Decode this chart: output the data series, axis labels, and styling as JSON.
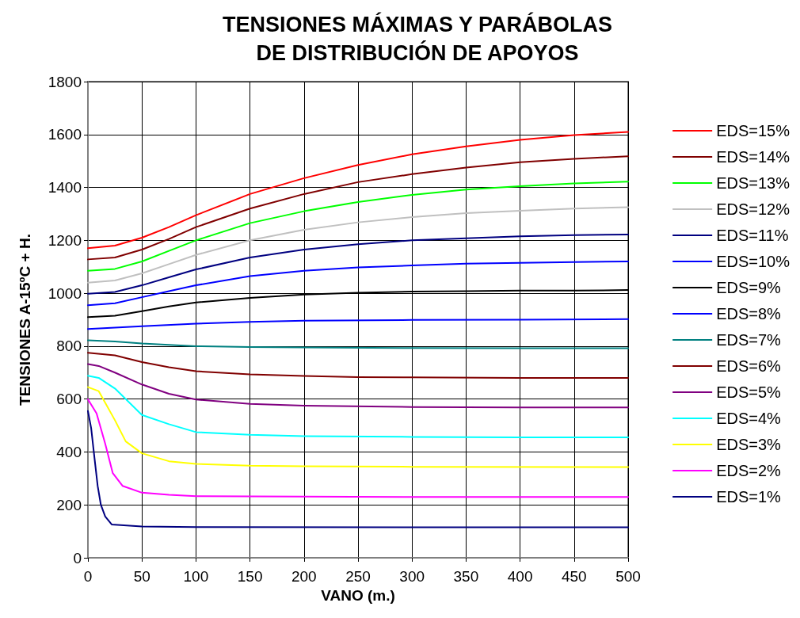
{
  "chart_data": {
    "type": "line",
    "title": "TENSIONES MÁXIMAS Y PARÁBOLAS\nDE DISTRIBUCIÓN DE APOYOS",
    "xlabel": "VANO (m.)",
    "ylabel": "TENSIONES A-15ºC + H.",
    "xlim": [
      0,
      500
    ],
    "xticks": [
      0,
      50,
      100,
      150,
      200,
      250,
      300,
      350,
      400,
      450,
      500
    ],
    "ylim": [
      0,
      1800
    ],
    "yticks": [
      0,
      200,
      400,
      600,
      800,
      1000,
      1200,
      1400,
      1600,
      1800
    ],
    "grid": true,
    "legend": "right",
    "marker": "none",
    "line_style": "solid",
    "series": [
      {
        "name": "EDS=15%",
        "color": "#ff0000",
        "x": [
          0,
          25,
          50,
          75,
          100,
          150,
          200,
          250,
          300,
          350,
          400,
          450,
          500
        ],
        "values": [
          1170,
          1180,
          1210,
          1250,
          1295,
          1375,
          1435,
          1485,
          1525,
          1555,
          1580,
          1598,
          1610
        ]
      },
      {
        "name": "EDS=14%",
        "color": "#800000",
        "x": [
          0,
          25,
          50,
          75,
          100,
          150,
          200,
          250,
          300,
          350,
          400,
          450,
          500
        ],
        "values": [
          1128,
          1135,
          1165,
          1205,
          1250,
          1320,
          1375,
          1420,
          1450,
          1475,
          1495,
          1508,
          1518
        ]
      },
      {
        "name": "EDS=13%",
        "color": "#00ff00",
        "x": [
          0,
          25,
          50,
          75,
          100,
          150,
          200,
          250,
          300,
          350,
          400,
          450,
          500
        ],
        "values": [
          1085,
          1092,
          1120,
          1160,
          1200,
          1265,
          1310,
          1345,
          1372,
          1392,
          1405,
          1415,
          1422
        ]
      },
      {
        "name": "EDS=12%",
        "color": "#c0c0c0",
        "x": [
          0,
          25,
          50,
          75,
          100,
          150,
          200,
          250,
          300,
          350,
          400,
          450,
          500
        ],
        "values": [
          1040,
          1048,
          1075,
          1110,
          1145,
          1200,
          1240,
          1268,
          1288,
          1303,
          1312,
          1320,
          1325
        ]
      },
      {
        "name": "EDS=11%",
        "color": "#000080",
        "x": [
          0,
          25,
          50,
          75,
          100,
          150,
          200,
          250,
          300,
          350,
          400,
          450,
          500
        ],
        "values": [
          998,
          1005,
          1030,
          1060,
          1090,
          1135,
          1165,
          1185,
          1200,
          1208,
          1215,
          1220,
          1222
        ]
      },
      {
        "name": "EDS=10%",
        "color": "#0000ff",
        "x": [
          0,
          25,
          50,
          75,
          100,
          150,
          200,
          250,
          300,
          350,
          400,
          450,
          500
        ],
        "values": [
          955,
          962,
          985,
          1008,
          1030,
          1065,
          1085,
          1098,
          1105,
          1112,
          1115,
          1118,
          1120
        ]
      },
      {
        "name": "EDS=9%",
        "color": "#000000",
        "x": [
          0,
          25,
          50,
          75,
          100,
          150,
          200,
          250,
          300,
          350,
          400,
          450,
          500
        ],
        "values": [
          910,
          915,
          932,
          950,
          965,
          982,
          995,
          1002,
          1006,
          1008,
          1010,
          1010,
          1012
        ]
      },
      {
        "name": "EDS=8%",
        "color": "#0000ff",
        "x": [
          0,
          50,
          100,
          150,
          200,
          300,
          400,
          500
        ],
        "values": [
          865,
          875,
          885,
          892,
          896,
          899,
          900,
          902
        ]
      },
      {
        "name": "EDS=7%",
        "color": "#008080",
        "x": [
          0,
          25,
          50,
          100,
          150,
          200,
          300,
          400,
          500
        ],
        "values": [
          822,
          818,
          810,
          800,
          797,
          795,
          793,
          792,
          792
        ]
      },
      {
        "name": "EDS=6%",
        "color": "#800000",
        "x": [
          0,
          25,
          50,
          75,
          100,
          150,
          200,
          250,
          300,
          400,
          500
        ],
        "values": [
          775,
          765,
          740,
          720,
          705,
          693,
          687,
          683,
          682,
          680,
          680
        ]
      },
      {
        "name": "EDS=5%",
        "color": "#800080",
        "x": [
          0,
          10,
          25,
          50,
          75,
          100,
          150,
          200,
          300,
          400,
          500
        ],
        "values": [
          732,
          725,
          700,
          655,
          620,
          598,
          582,
          575,
          570,
          568,
          568
        ]
      },
      {
        "name": "EDS=4%",
        "color": "#00ffff",
        "x": [
          0,
          10,
          25,
          50,
          75,
          100,
          150,
          200,
          300,
          400,
          500
        ],
        "values": [
          688,
          680,
          640,
          540,
          505,
          475,
          465,
          460,
          457,
          455,
          455
        ]
      },
      {
        "name": "EDS=3%",
        "color": "#ffff00",
        "x": [
          0,
          10,
          25,
          35,
          50,
          75,
          100,
          150,
          200,
          300,
          500
        ],
        "values": [
          645,
          630,
          520,
          440,
          395,
          365,
          355,
          348,
          346,
          344,
          343
        ]
      },
      {
        "name": "EDS=2%",
        "color": "#ff00ff",
        "x": [
          0,
          8,
          16,
          23,
          32,
          50,
          75,
          100,
          150,
          300,
          500
        ],
        "values": [
          599,
          546,
          431,
          320,
          272,
          246,
          238,
          233,
          232,
          230,
          230
        ]
      },
      {
        "name": "EDS=1%",
        "color": "#000080",
        "x": [
          0,
          3,
          6,
          9,
          12,
          16,
          22,
          50,
          100,
          500
        ],
        "values": [
          555,
          490,
          380,
          272,
          200,
          156,
          126,
          118,
          116,
          115
        ]
      }
    ]
  }
}
